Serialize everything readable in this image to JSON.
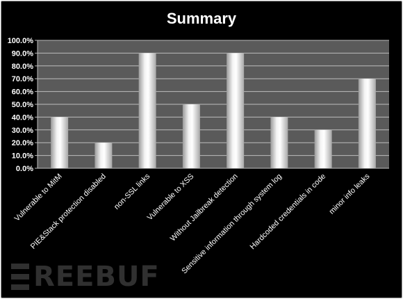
{
  "chart_data": {
    "type": "bar",
    "title": "Summary",
    "categories": [
      "Vulnerable to MitM",
      "PIE&Stack  protection disabled",
      "non-SSL links",
      "Vulnerable to XSS",
      "Without Jailbreak detection",
      "Sensitive information  through system log",
      "Hardcoded credentials in code",
      "minor info leaks"
    ],
    "values": [
      0.4,
      0.2,
      0.9,
      0.5,
      0.9,
      0.4,
      0.3,
      0.7
    ],
    "yticks": [
      "0.0%",
      "10.0%",
      "20.0%",
      "30.0%",
      "40.0%",
      "50.0%",
      "60.0%",
      "70.0%",
      "80.0%",
      "90.0%",
      "100.0%"
    ],
    "ylim": [
      0,
      1
    ],
    "grid": true,
    "legend": "none",
    "colors": {
      "background": "#000000",
      "plot": "#5a5a5a",
      "grid": "#bdbdbd",
      "text": "#ffffff"
    }
  },
  "watermark": "REEBUF"
}
